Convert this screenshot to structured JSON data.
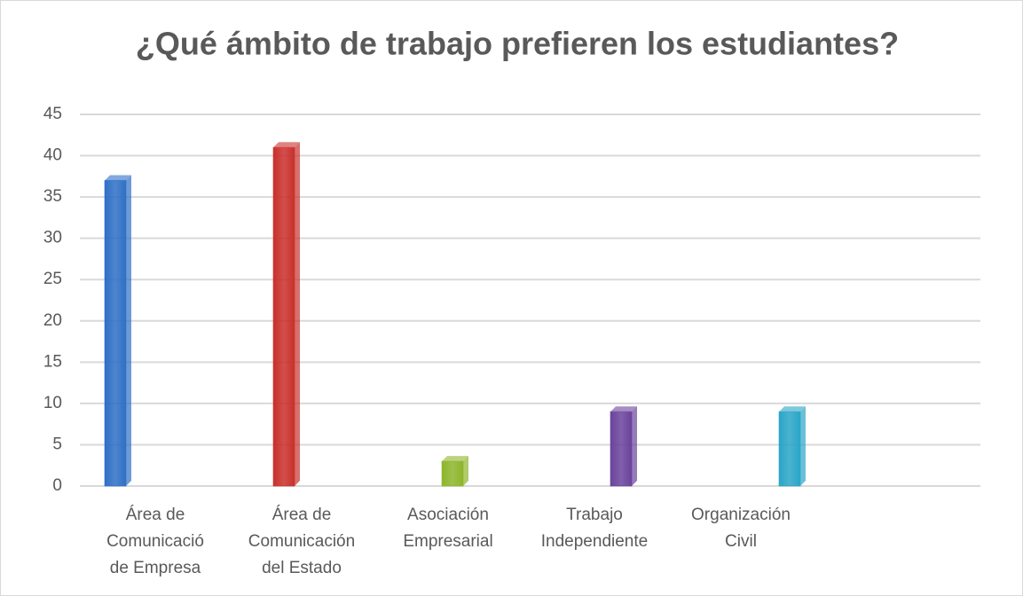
{
  "chart_data": {
    "type": "bar",
    "title": "¿Qué ámbito de trabajo prefieren los estudiantes?",
    "categories": [
      "Área de\nComunicació\nde Empresa",
      "Área de\nComunicación\ndel Estado",
      "Asociación\nEmpresarial",
      "Trabajo\nIndependiente",
      "Organización\nCivil"
    ],
    "values": [
      37,
      41,
      3,
      9,
      9
    ],
    "colors": [
      "#2f6fc6",
      "#c9302c",
      "#8db52b",
      "#6a439b",
      "#2aa5c7"
    ],
    "ylim": [
      0,
      45
    ],
    "yticks": [
      0,
      5,
      10,
      15,
      20,
      25,
      30,
      35,
      40,
      45
    ],
    "grid": true
  }
}
